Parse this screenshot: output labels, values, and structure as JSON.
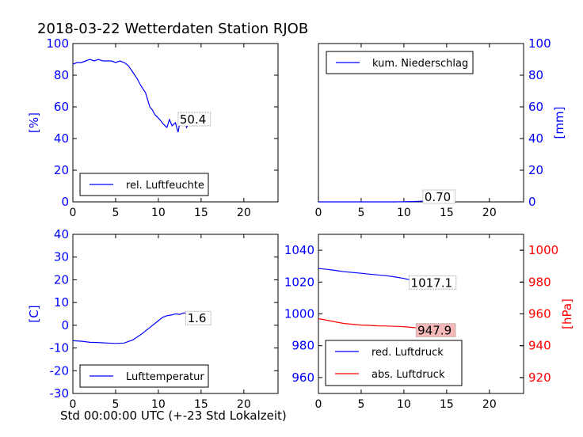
{
  "title": "2018-03-22 Wetterdaten Station RJOB",
  "xlabel": "Std 00:00:00 UTC (+-23 Std Lokalzeit)",
  "colors": {
    "blue": "#0000ff",
    "red": "#ff0000",
    "frame": "#000000",
    "annotation_fill_red": "#f4b8b8"
  },
  "chart_data": [
    {
      "type": "line",
      "panel": "top-left",
      "xlim": [
        0,
        24
      ],
      "ylim": [
        0,
        100
      ],
      "xticks": [
        0,
        5,
        10,
        15,
        20
      ],
      "yticks": [
        0,
        20,
        40,
        60,
        80,
        100
      ],
      "ylabel": "[%]",
      "legend": {
        "placement": "lower-left",
        "entries": [
          {
            "label": "rel. Luftfeuchte",
            "color": "#0000ff"
          }
        ]
      },
      "annotation": {
        "text": "50.4",
        "x": 12.5,
        "y": 52
      },
      "series": [
        {
          "name": "rel. Luftfeuchte",
          "color": "#0000ff",
          "x": [
            0,
            0.5,
            1,
            1.5,
            2,
            2.5,
            3,
            3.5,
            4,
            4.5,
            5,
            5.5,
            6,
            6.5,
            7,
            7.5,
            8,
            8.5,
            9,
            9.3,
            9.6,
            10,
            10.3,
            10.6,
            11,
            11.3,
            11.6,
            12,
            12.3,
            12.6,
            13,
            13.3,
            13.6,
            14,
            14.3,
            14.6,
            15,
            15.5
          ],
          "values": [
            87,
            88,
            88,
            89,
            90,
            89,
            90,
            89,
            89,
            89,
            88,
            89,
            88,
            86,
            82,
            78,
            73,
            69,
            60,
            58,
            55,
            53,
            51,
            49,
            47,
            52,
            48,
            50,
            44,
            52,
            53,
            47,
            50,
            54,
            51,
            49,
            53,
            52
          ]
        }
      ]
    },
    {
      "type": "line",
      "panel": "top-right",
      "xlim": [
        0,
        24
      ],
      "ylim": [
        0,
        100
      ],
      "xticks": [
        0,
        5,
        10,
        15,
        20
      ],
      "yticks": [
        0,
        20,
        40,
        60,
        80,
        100
      ],
      "ylabel": "[mm]",
      "legend": {
        "placement": "upper-left",
        "entries": [
          {
            "label": "kum. Niederschlag",
            "color": "#0000ff"
          }
        ]
      },
      "annotation": {
        "text": "0.70",
        "x": 12.4,
        "y": 3
      },
      "series": [
        {
          "name": "kum. Niederschlag",
          "color": "#0000ff",
          "x": [
            0,
            5,
            9,
            10,
            11,
            12,
            13,
            14,
            15,
            15.5
          ],
          "values": [
            0,
            0,
            0,
            0.1,
            0.2,
            0.4,
            0.5,
            0.6,
            0.7,
            0.7
          ]
        }
      ]
    },
    {
      "type": "line",
      "panel": "bottom-left",
      "xlim": [
        0,
        24
      ],
      "ylim": [
        -30,
        40
      ],
      "xticks": [
        0,
        5,
        10,
        15,
        20
      ],
      "yticks": [
        -30,
        -20,
        -10,
        0,
        10,
        20,
        30,
        40
      ],
      "ylabel": "[C]",
      "legend": {
        "placement": "lower-left",
        "entries": [
          {
            "label": "Lufttemperatur",
            "color": "#0000ff"
          }
        ]
      },
      "annotation": {
        "text": "1.6",
        "x": 13.4,
        "y": 3
      },
      "series": [
        {
          "name": "Lufttemperatur",
          "color": "#0000ff",
          "x": [
            0,
            1,
            2,
            3,
            4,
            5,
            6,
            7,
            8,
            9,
            10,
            10.5,
            11,
            11.5,
            12,
            12.5,
            13,
            13.5,
            14
          ],
          "values": [
            -6.8,
            -7,
            -7.5,
            -7.6,
            -7.8,
            -8,
            -7.8,
            -6.5,
            -4,
            -1,
            2,
            3.5,
            4.2,
            4.5,
            5,
            4.8,
            5.5,
            4.8,
            5
          ]
        }
      ]
    },
    {
      "type": "line",
      "panel": "bottom-right",
      "xlim": [
        0,
        24
      ],
      "ylim": [
        950,
        1050
      ],
      "y2lim": [
        910,
        1010
      ],
      "xticks": [
        0,
        5,
        10,
        15,
        20
      ],
      "yticks": [
        960,
        980,
        1000,
        1020,
        1040
      ],
      "y2ticks": [
        920,
        940,
        960,
        980,
        1000
      ],
      "y2label": "[hPa]",
      "legend": {
        "placement": "lower-left",
        "entries": [
          {
            "label": "red. Luftdruck",
            "color": "#0000ff"
          },
          {
            "label": "abs. Luftdruck",
            "color": "#ff0000"
          }
        ]
      },
      "annotations": [
        {
          "text": "1017.1",
          "x": 10.8,
          "y": 1019.5,
          "axis": "left"
        },
        {
          "text": "947.9",
          "x": 11.6,
          "y": 949.5,
          "axis": "right",
          "fill": "#f4b8b8"
        }
      ],
      "series": [
        {
          "name": "red. Luftdruck",
          "color": "#0000ff",
          "axis": "left",
          "x": [
            0,
            1,
            2,
            3,
            4,
            5,
            6,
            7,
            8,
            9,
            10,
            11,
            11.5
          ],
          "values": [
            1028.5,
            1028,
            1027.3,
            1026.5,
            1026,
            1025.5,
            1025,
            1024.5,
            1024,
            1023.2,
            1022.3,
            1021,
            1020.5
          ]
        },
        {
          "name": "abs. Luftdruck",
          "color": "#ff0000",
          "axis": "right",
          "x": [
            0,
            1,
            2,
            3,
            4,
            5,
            6,
            7,
            8,
            9,
            10,
            11,
            12,
            13,
            14,
            15,
            15.5
          ],
          "values": [
            957,
            956,
            955,
            954,
            953.5,
            953,
            952.8,
            952.5,
            952.4,
            952.2,
            952,
            951.5,
            951,
            950.5,
            950,
            949.3,
            948.5
          ]
        }
      ]
    }
  ]
}
